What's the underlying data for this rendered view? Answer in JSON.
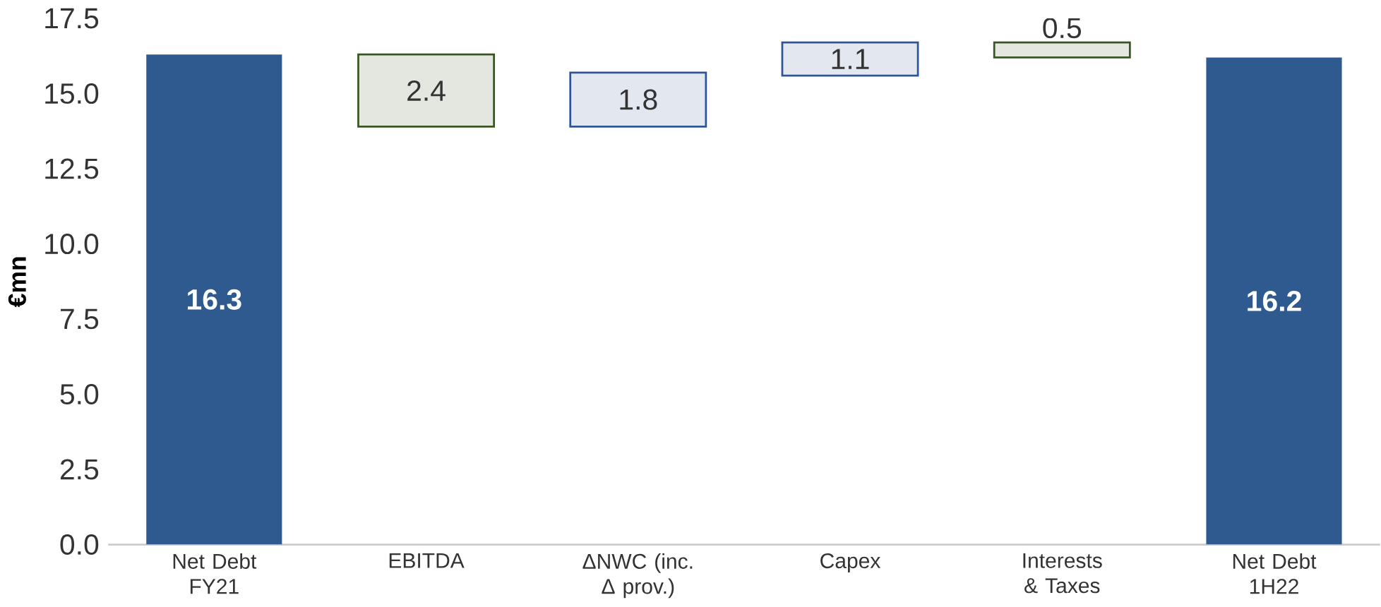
{
  "chart_data": {
    "type": "bar",
    "ylabel": "€mn",
    "categories": [
      "Net Debt FY21",
      "EBITDA",
      "ΔNWC (inc. Δ prov.)",
      "Capex",
      "Interests & Taxes",
      "Net Debt 1H22"
    ],
    "values": [
      16.3,
      2.4,
      1.8,
      1.1,
      0.5,
      16.2
    ],
    "base": [
      0,
      13.9,
      13.9,
      15.6,
      16.2,
      0
    ],
    "colors": [
      "#2f5a8f",
      "#375623",
      "#2f5597",
      "#2f5597",
      "#375623",
      "#2f5a8f"
    ],
    "ylim": [
      0,
      17.5
    ],
    "yticks": [
      {
        "value": 0,
        "label": "0.0"
      },
      {
        "value": 2.5,
        "label": "2.5"
      },
      {
        "value": 5,
        "label": "5.0"
      },
      {
        "value": 7.5,
        "label": "7.5"
      },
      {
        "value": 10,
        "label": "10.0"
      },
      {
        "value": 12.5,
        "label": "12.5"
      },
      {
        "value": 15,
        "label": "15.0"
      },
      {
        "value": 17.5,
        "label": "17.5"
      }
    ],
    "data_labels": true,
    "grid": false
  }
}
